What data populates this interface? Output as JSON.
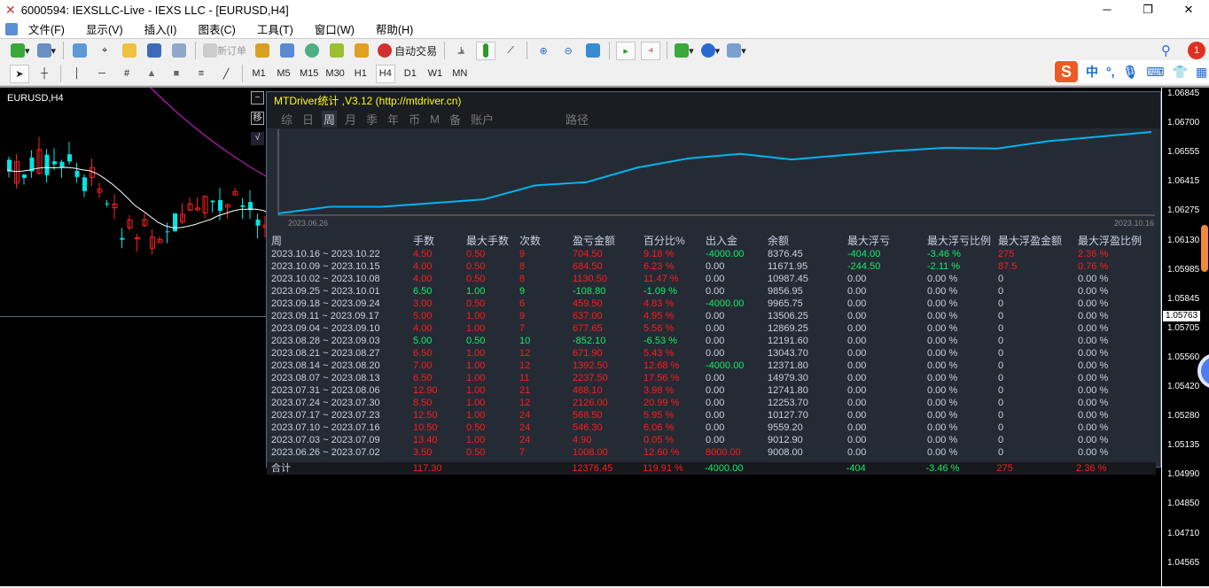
{
  "window": {
    "title": "6000594: IEXSLLC-Live - IEXS LLC - [EURUSD,H4]"
  },
  "menu": [
    "文件(F)",
    "显示(V)",
    "插入(I)",
    "图表(C)",
    "工具(T)",
    "窗口(W)",
    "帮助(H)"
  ],
  "toolbar": {
    "new_order": "新订单",
    "auto_trading": "自动交易"
  },
  "timeframes": [
    "M1",
    "M5",
    "M15",
    "M30",
    "H1",
    "H4",
    "D1",
    "W1",
    "MN"
  ],
  "active_timeframe": "H4",
  "ime": {
    "lang": "中",
    "punct": "°,"
  },
  "notification_count": "1",
  "chart": {
    "symbol": "EURUSD,H4",
    "current_price": "1.05763",
    "price_ticks": [
      "1.06845",
      "1.06700",
      "1.06555",
      "1.06415",
      "1.06275",
      "1.06130",
      "1.05985",
      "1.05845",
      "1.05705",
      "1.05560",
      "1.05420",
      "1.05280",
      "1.05135",
      "1.04990",
      "1.04850",
      "1.04710",
      "1.04565"
    ]
  },
  "panel": {
    "title": "MTDriver统计 ,V3.12 (http://mtdriver.cn)",
    "side_buttons": [
      "−",
      "移",
      "√"
    ],
    "tabs": [
      "综",
      "日",
      "周",
      "月",
      "季",
      "年",
      "币",
      "M",
      "备",
      "账户",
      "路径"
    ],
    "active_tab": "周",
    "equity": {
      "start_date": "2023.06.26",
      "end_date": "2023.10.16",
      "color": "#00b4f0"
    },
    "columns": [
      "周",
      "手数",
      "最大手数",
      "次数",
      "盈亏金额",
      "百分比%",
      "出入金",
      "余额",
      "最大浮亏",
      "最大浮亏比例",
      "最大浮盈金额",
      "最大浮盈比例"
    ],
    "rows": [
      [
        "2023.10.16 ~ 2023.10.22",
        "4.50",
        "0.50",
        "9",
        "704.50",
        "9.18 %",
        "-4000.00",
        "8376.45",
        "-404.00",
        "-3.46 %",
        "275",
        "2.36 %"
      ],
      [
        "2023.10.09 ~ 2023.10.15",
        "4.00",
        "0.50",
        "8",
        "684.50",
        "6.23 %",
        "0.00",
        "11671.95",
        "-244.50",
        "-2.11 %",
        "87.5",
        "0.76 %"
      ],
      [
        "2023.10.02 ~ 2023.10.08",
        "4.00",
        "0.50",
        "8",
        "1130.50",
        "11.47 %",
        "0.00",
        "10987.45",
        "0.00",
        "0.00 %",
        "0",
        "0.00 %"
      ],
      [
        "2023.09.25 ~ 2023.10.01",
        "6.50",
        "1.00",
        "9",
        "-108.80",
        "-1.09 %",
        "0.00",
        "9856.95",
        "0.00",
        "0.00 %",
        "0",
        "0.00 %"
      ],
      [
        "2023.09.18 ~ 2023.09.24",
        "3.00",
        "0.50",
        "6",
        "459.50",
        "4.83 %",
        "-4000.00",
        "9965.75",
        "0.00",
        "0.00 %",
        "0",
        "0.00 %"
      ],
      [
        "2023.09.11 ~ 2023.09.17",
        "5.00",
        "1.00",
        "9",
        "637.00",
        "4.95 %",
        "0.00",
        "13506.25",
        "0.00",
        "0.00 %",
        "0",
        "0.00 %"
      ],
      [
        "2023.09.04 ~ 2023.09.10",
        "4.00",
        "1.00",
        "7",
        "677.65",
        "5.56 %",
        "0.00",
        "12869.25",
        "0.00",
        "0.00 %",
        "0",
        "0.00 %"
      ],
      [
        "2023.08.28 ~ 2023.09.03",
        "5.00",
        "0.50",
        "10",
        "-852.10",
        "-6.53 %",
        "0.00",
        "12191.60",
        "0.00",
        "0.00 %",
        "0",
        "0.00 %"
      ],
      [
        "2023.08.21 ~ 2023.08.27",
        "6.50",
        "1.00",
        "12",
        "671.90",
        "5.43 %",
        "0.00",
        "13043.70",
        "0.00",
        "0.00 %",
        "0",
        "0.00 %"
      ],
      [
        "2023.08.14 ~ 2023.08.20",
        "7.00",
        "1.00",
        "12",
        "1392.50",
        "12.68 %",
        "-4000.00",
        "12371.80",
        "0.00",
        "0.00 %",
        "0",
        "0.00 %"
      ],
      [
        "2023.08.07 ~ 2023.08.13",
        "6.50",
        "1.00",
        "11",
        "2237.50",
        "17.56 %",
        "0.00",
        "14979.30",
        "0.00",
        "0.00 %",
        "0",
        "0.00 %"
      ],
      [
        "2023.07.31 ~ 2023.08.06",
        "12.90",
        "1.00",
        "21",
        "488.10",
        "3.98 %",
        "0.00",
        "12741.80",
        "0.00",
        "0.00 %",
        "0",
        "0.00 %"
      ],
      [
        "2023.07.24 ~ 2023.07.30",
        "8.50",
        "1.00",
        "12",
        "2126.00",
        "20.99 %",
        "0.00",
        "12253.70",
        "0.00",
        "0.00 %",
        "0",
        "0.00 %"
      ],
      [
        "2023.07.17 ~ 2023.07.23",
        "12.50",
        "1.00",
        "24",
        "568.50",
        "5.95 %",
        "0.00",
        "10127.70",
        "0.00",
        "0.00 %",
        "0",
        "0.00 %"
      ],
      [
        "2023.07.10 ~ 2023.07.16",
        "10.50",
        "0.50",
        "24",
        "546.30",
        "6.06 %",
        "0.00",
        "9559.20",
        "0.00",
        "0.00 %",
        "0",
        "0.00 %"
      ],
      [
        "2023.07.03 ~ 2023.07.09",
        "13.40",
        "1.00",
        "24",
        "4.90",
        "0.05 %",
        "0.00",
        "9012.90",
        "0.00",
        "0.00 %",
        "0",
        "0.00 %"
      ],
      [
        "2023.06.26 ~ 2023.07.02",
        "3.50",
        "0.50",
        "7",
        "1008.00",
        "12.60 %",
        "8000.00",
        "9008.00",
        "0.00",
        "0.00 %",
        "0",
        "0.00 %"
      ]
    ],
    "total": [
      "合计",
      "117.30",
      "",
      "",
      "12376.45",
      "119.91 %",
      "-4000.00",
      "",
      "-404",
      "-3.46 %",
      "275",
      "2.36 %"
    ]
  }
}
